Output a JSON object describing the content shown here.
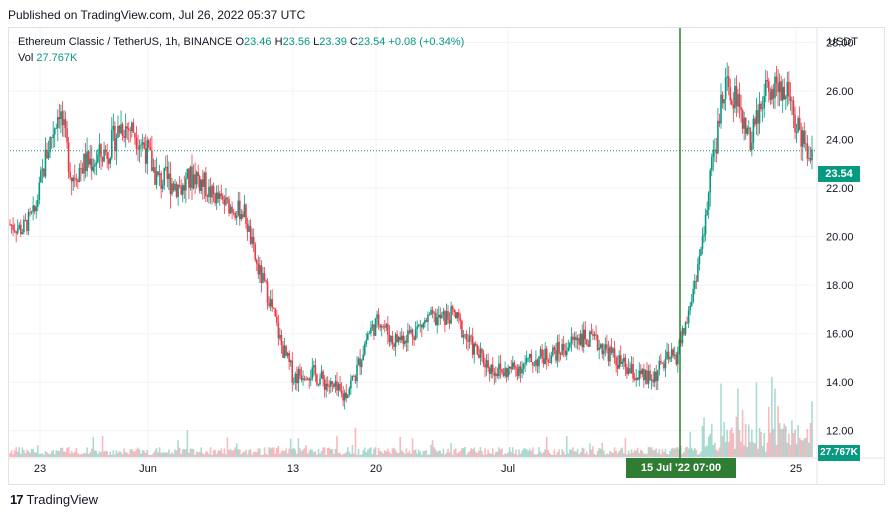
{
  "published": "Published on TradingView.com, Jul 26, 2022 05:37 UTC",
  "legend": {
    "symbol": "Ethereum Classic / TetherUS, 1h, BINANCE",
    "o_label": "O",
    "o": "23.46",
    "h_label": "H",
    "h": "23.56",
    "l_label": "L",
    "l": "23.39",
    "c_label": "C",
    "c": "23.54",
    "change": "+0.08 (+0.34%)",
    "vol_label": "Vol",
    "vol": "27.767K"
  },
  "currency": "USDT",
  "price_badge": "23.54",
  "vol_badge": "27.767K",
  "crosshair_label": "15 Jul '22   07:00",
  "footer_brand": "TradingView",
  "colors": {
    "up": "#089981",
    "down": "#f23645",
    "crosshair": "#2e7d32",
    "grid": "#f0f3fa"
  },
  "chart_data": {
    "type": "candlestick",
    "y_ticks": [
      "28.00",
      "26.00",
      "24.00",
      "22.00",
      "20.00",
      "18.00",
      "16.00",
      "14.00",
      "12.00"
    ],
    "x_ticks": [
      "23",
      "Jun",
      "13",
      "20",
      "Jul",
      "25"
    ],
    "ylim": [
      11.0,
      28.6
    ],
    "last_price": 23.54,
    "crosshair_date": "15 Jul '22 07:00",
    "price_path": [
      [
        "May 22",
        20.5
      ],
      [
        "May 23",
        20.3
      ],
      [
        "May 24",
        21.0
      ],
      [
        "May 25",
        23.5
      ],
      [
        "May 26",
        25.3
      ],
      [
        "May 27",
        22.5
      ],
      [
        "May 28",
        23.0
      ],
      [
        "May 29",
        23.2
      ],
      [
        "May 30",
        23.6
      ],
      [
        "May 31",
        24.6
      ],
      [
        "Jun 1",
        24.4
      ],
      [
        "Jun 2",
        23.6
      ],
      [
        "Jun 3",
        22.3
      ],
      [
        "Jun 4",
        22.3
      ],
      [
        "Jun 5",
        22.0
      ],
      [
        "Jun 6",
        22.6
      ],
      [
        "Jun 7",
        21.9
      ],
      [
        "Jun 8",
        21.5
      ],
      [
        "Jun 9",
        21.2
      ],
      [
        "Jun 10",
        21.0
      ],
      [
        "Jun 11",
        18.8
      ],
      [
        "Jun 12",
        17.5
      ],
      [
        "Jun 13",
        15.5
      ],
      [
        "Jun 14",
        14.2
      ],
      [
        "Jun 15",
        14.5
      ],
      [
        "Jun 16",
        14.2
      ],
      [
        "Jun 17",
        13.8
      ],
      [
        "Jun 18",
        13.4
      ],
      [
        "Jun 19",
        14.3
      ],
      [
        "Jun 20",
        16.0
      ],
      [
        "Jun 21",
        16.6
      ],
      [
        "Jun 22",
        15.7
      ],
      [
        "Jun 23",
        15.9
      ],
      [
        "Jun 24",
        16.2
      ],
      [
        "Jun 25",
        16.6
      ],
      [
        "Jun 26",
        16.6
      ],
      [
        "Jun 27",
        16.8
      ],
      [
        "Jun 28",
        15.8
      ],
      [
        "Jun 29",
        15.1
      ],
      [
        "Jun 30",
        14.6
      ],
      [
        "Jul 1",
        14.4
      ],
      [
        "Jul 2",
        14.6
      ],
      [
        "Jul 3",
        14.8
      ],
      [
        "Jul 4",
        15.0
      ],
      [
        "Jul 5",
        15.2
      ],
      [
        "Jul 6",
        15.4
      ],
      [
        "Jul 7",
        15.9
      ],
      [
        "Jul 8",
        15.7
      ],
      [
        "Jul 9",
        15.5
      ],
      [
        "Jul 10",
        15.0
      ],
      [
        "Jul 11",
        14.5
      ],
      [
        "Jul 12",
        14.2
      ],
      [
        "Jul 13",
        14.1
      ],
      [
        "Jul 14",
        14.8
      ],
      [
        "Jul 15",
        15.1
      ],
      [
        "Jul 16",
        16.8
      ],
      [
        "Jul 17",
        19.5
      ],
      [
        "Jul 18",
        23.2
      ],
      [
        "Jul 19",
        26.5
      ],
      [
        "Jul 20",
        25.5
      ],
      [
        "Jul 21",
        23.8
      ],
      [
        "Jul 22",
        25.8
      ],
      [
        "Jul 23",
        26.2
      ],
      [
        "Jul 24",
        26.0
      ],
      [
        "Jul 25",
        24.2
      ],
      [
        "Jul 26",
        23.5
      ]
    ],
    "volume_spikes": [
      "Jul 18",
      "Jul 19",
      "Jul 20",
      "Jul 21",
      "Jul 22"
    ]
  }
}
